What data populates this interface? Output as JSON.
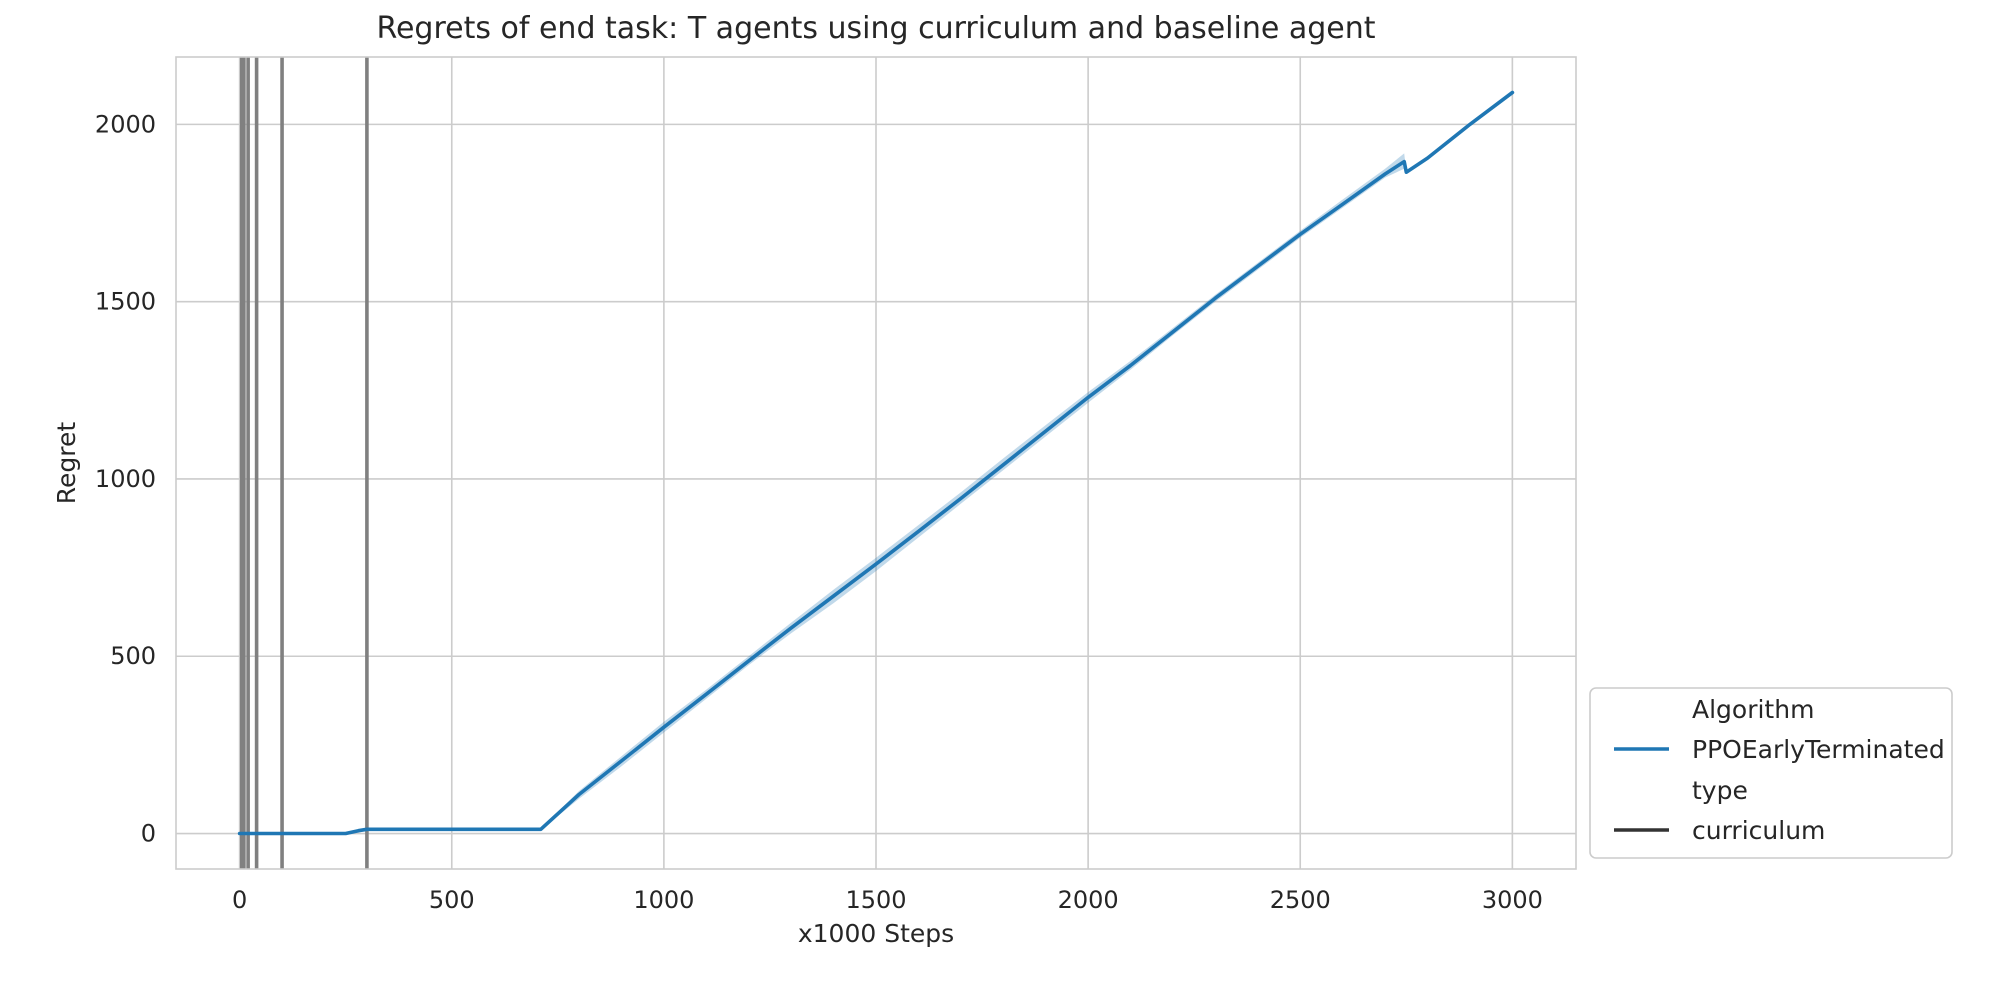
{
  "chart_data": {
    "type": "line",
    "title": "Regrets of end task: T agents using curriculum and baseline agent",
    "xlabel": "x1000 Steps",
    "ylabel": "Regret",
    "xlim": [
      -150,
      3150
    ],
    "ylim": [
      -100,
      2190
    ],
    "x_ticks": [
      0,
      500,
      1000,
      1500,
      2000,
      2500,
      3000
    ],
    "y_ticks": [
      0,
      500,
      1000,
      1500,
      2000
    ],
    "grid": true,
    "legend_position": "lower-right-outside",
    "legend": [
      {
        "kind": "header",
        "text": "Algorithm"
      },
      {
        "kind": "line",
        "text": "PPOEarlyTerminated",
        "color": "#1f77b4"
      },
      {
        "kind": "header",
        "text": "type"
      },
      {
        "kind": "line",
        "text": "curriculum",
        "color": "#333333"
      }
    ],
    "vertical_lines": {
      "color": "#808080",
      "x": [
        5,
        10,
        20,
        40,
        100,
        300
      ]
    },
    "series": [
      {
        "name": "PPOEarlyTerminated",
        "color": "#1f77b4",
        "x": [
          0,
          100,
          200,
          250,
          280,
          300,
          400,
          500,
          600,
          700,
          710,
          800,
          900,
          1000,
          1100,
          1200,
          1300,
          1400,
          1500,
          1600,
          1700,
          1800,
          1900,
          2000,
          2100,
          2200,
          2300,
          2400,
          2500,
          2600,
          2700,
          2745,
          2750,
          2800,
          2900,
          3000
        ],
        "y": [
          0,
          0,
          0,
          0,
          8,
          12,
          12,
          12,
          12,
          12,
          12,
          110,
          205,
          300,
          393,
          487,
          580,
          670,
          760,
          852,
          945,
          1040,
          1135,
          1230,
          1320,
          1415,
          1510,
          1600,
          1690,
          1775,
          1860,
          1895,
          1865,
          1905,
          2000,
          2090
        ],
        "band_lower": [
          0,
          0,
          0,
          0,
          6,
          10,
          10,
          10,
          10,
          10,
          10,
          98,
          190,
          285,
          380,
          475,
          565,
          650,
          740,
          835,
          930,
          1025,
          1120,
          1215,
          1308,
          1405,
          1500,
          1590,
          1680,
          1765,
          1850,
          1875,
          1865,
          1905,
          2000,
          2090
        ],
        "band_upper": [
          0,
          0,
          0,
          0,
          10,
          14,
          14,
          14,
          14,
          14,
          14,
          120,
          218,
          315,
          406,
          500,
          595,
          688,
          778,
          870,
          962,
          1058,
          1152,
          1245,
          1333,
          1426,
          1520,
          1610,
          1700,
          1788,
          1875,
          1918,
          1865,
          1905,
          2000,
          2090
        ]
      }
    ]
  }
}
